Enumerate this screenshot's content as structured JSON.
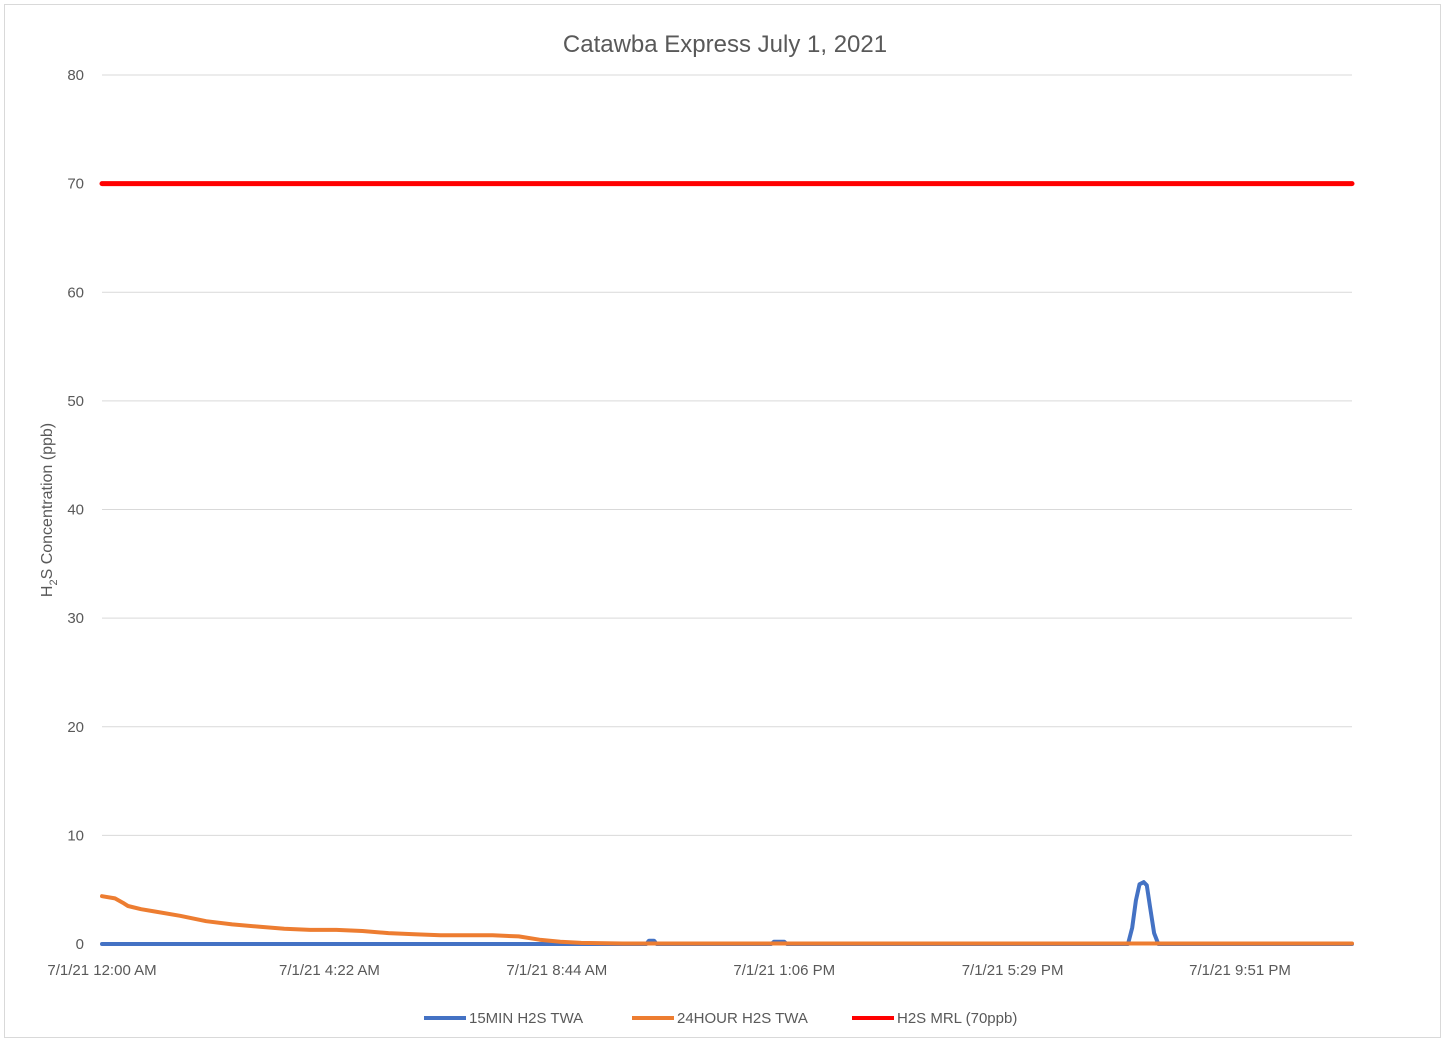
{
  "chart_data": {
    "type": "line",
    "title": "Catawba Express July 1, 2021",
    "ylabel_parts": [
      "H",
      "2",
      "S Concentration (ppb)"
    ],
    "ylim": [
      0,
      80
    ],
    "yticks": [
      0,
      10,
      20,
      30,
      40,
      50,
      60,
      70,
      80
    ],
    "xlabels": [
      "7/1/21 12:00 AM",
      "7/1/21 4:22 AM",
      "7/1/21 8:44 AM",
      "7/1/21 1:06 PM",
      "7/1/21 5:29 PM",
      "7/1/21 9:51 PM"
    ],
    "x_label_hours": [
      0,
      4.367,
      8.733,
      13.1,
      17.483,
      21.85
    ],
    "x_range_hours": [
      0,
      24
    ],
    "grid": true,
    "legend_position": "bottom",
    "series": [
      {
        "name": "15MIN H2S TWA",
        "color": "#4472c4",
        "points": [
          [
            0,
            0
          ],
          [
            10.45,
            0
          ],
          [
            10.5,
            0.3
          ],
          [
            10.6,
            0.3
          ],
          [
            10.65,
            0
          ],
          [
            12.85,
            0
          ],
          [
            12.9,
            0.2
          ],
          [
            13.1,
            0.2
          ],
          [
            13.15,
            0
          ],
          [
            19.7,
            0
          ],
          [
            19.78,
            1.5
          ],
          [
            19.85,
            4.0
          ],
          [
            19.92,
            5.5
          ],
          [
            20.0,
            5.7
          ],
          [
            20.06,
            5.4
          ],
          [
            20.12,
            3.5
          ],
          [
            20.2,
            1.0
          ],
          [
            20.28,
            0
          ],
          [
            24,
            0
          ]
        ]
      },
      {
        "name": "24HOUR H2S TWA",
        "color": "#ed7d31",
        "points": [
          [
            0,
            4.4
          ],
          [
            0.25,
            4.2
          ],
          [
            0.4,
            3.8
          ],
          [
            0.5,
            3.5
          ],
          [
            0.75,
            3.2
          ],
          [
            1.0,
            3.0
          ],
          [
            1.5,
            2.6
          ],
          [
            2.0,
            2.1
          ],
          [
            2.5,
            1.8
          ],
          [
            3.0,
            1.6
          ],
          [
            3.5,
            1.4
          ],
          [
            4.0,
            1.3
          ],
          [
            4.5,
            1.3
          ],
          [
            5.0,
            1.2
          ],
          [
            5.5,
            1.0
          ],
          [
            6.0,
            0.9
          ],
          [
            6.5,
            0.8
          ],
          [
            7.0,
            0.8
          ],
          [
            7.5,
            0.8
          ],
          [
            8.0,
            0.7
          ],
          [
            8.4,
            0.4
          ],
          [
            8.8,
            0.2
          ],
          [
            9.2,
            0.1
          ],
          [
            10,
            0.05
          ],
          [
            12,
            0.05
          ],
          [
            16,
            0.05
          ],
          [
            20,
            0.05
          ],
          [
            24,
            0.05
          ]
        ]
      },
      {
        "name": "H2S MRL (70ppb)",
        "color": "#ff0000",
        "points": [
          [
            0,
            70
          ],
          [
            24,
            70
          ]
        ]
      }
    ]
  }
}
